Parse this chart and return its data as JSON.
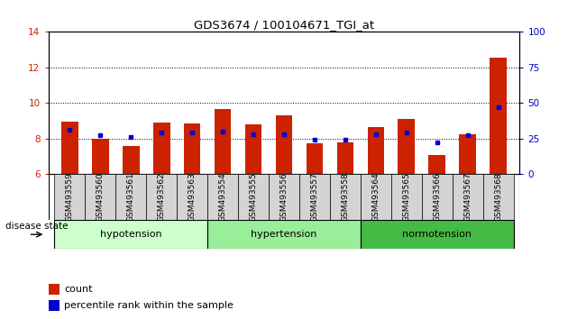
{
  "title": "GDS3674 / 100104671_TGI_at",
  "samples": [
    "GSM493559",
    "GSM493560",
    "GSM493561",
    "GSM493562",
    "GSM493563",
    "GSM493554",
    "GSM493555",
    "GSM493556",
    "GSM493557",
    "GSM493558",
    "GSM493564",
    "GSM493565",
    "GSM493566",
    "GSM493567",
    "GSM493568"
  ],
  "counts": [
    8.95,
    8.0,
    7.55,
    8.9,
    8.85,
    9.65,
    8.8,
    9.3,
    7.7,
    7.75,
    8.65,
    9.1,
    7.05,
    8.25,
    12.55
  ],
  "percentiles": [
    31,
    27,
    26,
    29,
    29,
    30,
    28,
    28,
    24,
    24,
    28,
    29,
    22,
    27,
    47
  ],
  "groups": [
    {
      "label": "hypotension",
      "start": 0,
      "end": 5,
      "color": "#ccffcc"
    },
    {
      "label": "hypertension",
      "start": 5,
      "end": 10,
      "color": "#99ee99"
    },
    {
      "label": "normotension",
      "start": 10,
      "end": 15,
      "color": "#44bb44"
    }
  ],
  "ylim_left": [
    6,
    14
  ],
  "ylim_right": [
    0,
    100
  ],
  "yticks_left": [
    6,
    8,
    10,
    12,
    14
  ],
  "yticks_right": [
    0,
    25,
    50,
    75,
    100
  ],
  "bar_color": "#cc2200",
  "dot_color": "#0000cc",
  "bar_width": 0.55,
  "background_color": "#ffffff",
  "left_tick_color": "#cc2200",
  "right_tick_color": "#0000cc",
  "legend_count_color": "#cc2200",
  "legend_dot_color": "#0000cc",
  "disease_state_label": "disease state",
  "legend_count_label": "count",
  "legend_percentile_label": "percentile rank within the sample",
  "box_color": "#d4d4d4"
}
